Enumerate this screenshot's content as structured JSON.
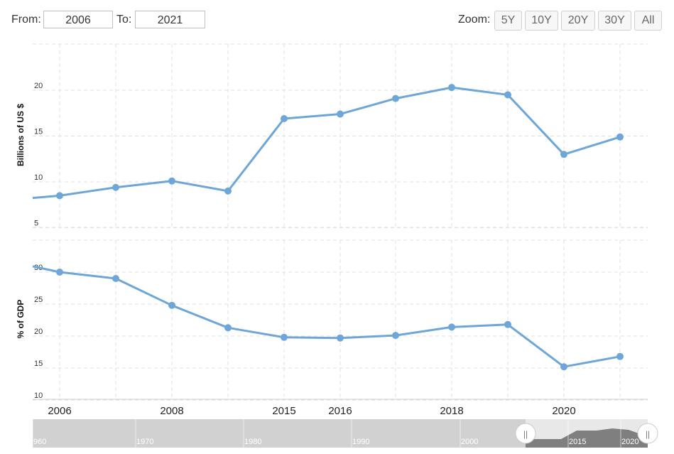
{
  "controls": {
    "from_label": "From:",
    "from_value": "2006",
    "to_label": "To:",
    "to_value": "2021",
    "zoom_label": "Zoom:",
    "zoom_buttons": [
      "5Y",
      "10Y",
      "20Y",
      "30Y",
      "All"
    ]
  },
  "navigator": {
    "ticks": [
      "960",
      "1970",
      "1980",
      "1990",
      "2000",
      "2015",
      "2020"
    ],
    "handle_left_glyph": "||",
    "handle_right_glyph": "||"
  },
  "colors": {
    "series": "#6ea6d8",
    "grid": "#e0e0e0",
    "navigator_bg": "#e8e8e8",
    "navigator_mask": "#bdbdbd"
  },
  "chart_data": [
    {
      "type": "line",
      "ylabel": "Billions of US $",
      "ylim": [
        4,
        24
      ],
      "yticks": [
        5,
        10,
        15,
        20
      ],
      "grid": true,
      "x": [
        "2006",
        "2007",
        "2008",
        "2009",
        "2015",
        "2016",
        "2017",
        "2018",
        "2019",
        "2020",
        "2021"
      ],
      "xtick_labels": [
        "2006",
        "2008",
        "2015",
        "2016",
        "2018",
        "2020"
      ],
      "series": [
        {
          "values": [
            8.5,
            9.4,
            10.1,
            9.0,
            16.9,
            17.4,
            19.1,
            20.3,
            19.5,
            13.0,
            14.9
          ]
        }
      ]
    },
    {
      "type": "line",
      "ylabel": "% of GDP",
      "ylim": [
        9,
        34
      ],
      "yticks": [
        10,
        15,
        20,
        25,
        30
      ],
      "grid": true,
      "x": [
        "2006",
        "2007",
        "2008",
        "2009",
        "2015",
        "2016",
        "2017",
        "2018",
        "2019",
        "2020",
        "2021"
      ],
      "series": [
        {
          "values": [
            30.0,
            29.0,
            24.8,
            21.3,
            19.8,
            19.7,
            20.1,
            21.4,
            21.8,
            15.2,
            16.8
          ]
        }
      ]
    }
  ]
}
